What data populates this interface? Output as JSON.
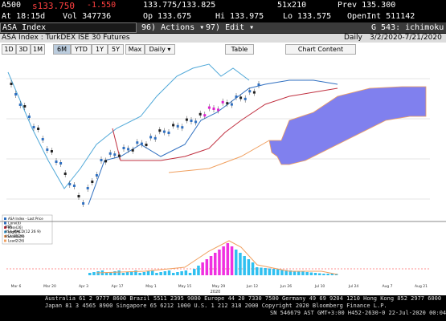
{
  "quote": {
    "ticker": "A500",
    "last": "s133.750",
    "change": "-1.550",
    "bid_ask": "133.775/133.825",
    "size": "51x210",
    "prev": "Prev 135.300",
    "time": "At 18:15d",
    "volume": "Vol 347736",
    "open": "Op 133.675",
    "high": "Hi 133.975",
    "low": "Lo 133.575",
    "open_interest": "OpenInt 511142"
  },
  "toolbar": {
    "security": "ASA Index",
    "actions": "96) Actions ▾",
    "edit": "97) Edit ▾",
    "function": "G 543: ichimoku"
  },
  "header": {
    "title": "ASA Index : TurkDEX ISE 30 Futures",
    "period": "Daily",
    "range": "3/2/2020-7/21/2020"
  },
  "buttons": [
    "1D",
    "3D",
    "1M",
    "6M",
    "YTD",
    "1Y",
    "5Y",
    "Max",
    "Daily ▾",
    "Table",
    "Chart Content"
  ],
  "legend": [
    "ASA Index - Last Price",
    "Conv(9)",
    "Base(26)",
    "Lag(26)",
    "Lead1(26)",
    "Lead2(26)"
  ],
  "lower_legend": [
    "ASA",
    "ASA MACD(12 26 9)",
    "ASA SIG(9)"
  ],
  "x_labels": [
    "Mar 6",
    "Mar 20",
    "Apr 3",
    "Apr 17",
    "May 1",
    "May 15",
    "May 29",
    "Jun 12",
    "Jun 26",
    "Jul 10",
    "Jul 24",
    "Aug 7",
    "Aug 21"
  ],
  "year": "2020",
  "footer": [
    "Australia 61 2 9777 8600 Brazil 5511 2395 9000 Europe 44 20 7330 7500 Germany 49 69 9204 1210 Hong Kong 852 2977 6000",
    "Japan 81 3 4565 8900       Singapore 65 6212 1000       U.S. 1 212 318 2000       Copyright 2020 Bloomberg Finance L.P.",
    "SN 546679 AST  GMT+3:00 H452-2630-0 22-Jul-2020 00:04:31"
  ]
}
